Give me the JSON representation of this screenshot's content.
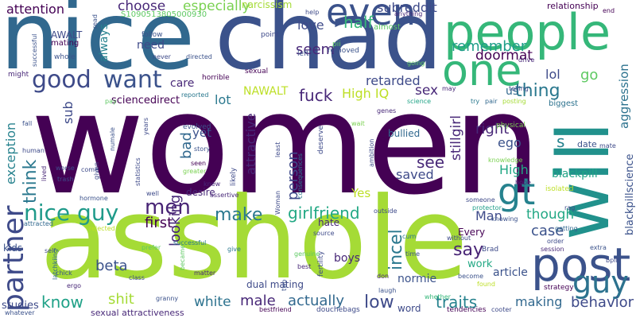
{
  "word_cloud": {
    "background": "#ffffff",
    "words": [
      {
        "text": "women",
        "color": "#440154"
      },
      {
        "text": "asshole",
        "color": "#a5db36"
      },
      {
        "text": "nice",
        "color": "#31688e"
      },
      {
        "text": "chad",
        "color": "#3b528b"
      },
      {
        "text": "will",
        "color": "#21918c"
      },
      {
        "text": "people",
        "color": "#35b779"
      },
      {
        "text": "one",
        "color": "#35b779"
      },
      {
        "text": "post",
        "color": "#3b528b"
      },
      {
        "text": "guy",
        "color": "#2c728e"
      },
      {
        "text": "gt",
        "color": "#26828e"
      },
      {
        "text": "even",
        "color": "#3b528b"
      },
      {
        "text": "good",
        "color": "#3e4a89"
      },
      {
        "text": "want",
        "color": "#3b528b"
      },
      {
        "text": "partner",
        "color": "#3e4a89"
      },
      {
        "text": "nice guy",
        "color": "#1f9a8a"
      },
      {
        "text": "men",
        "color": "#482475"
      },
      {
        "text": "make",
        "color": "#2a788e"
      },
      {
        "text": "girlfriend",
        "color": "#22a884"
      },
      {
        "text": "think",
        "color": "#2a788e"
      },
      {
        "text": "know",
        "color": "#1fa187"
      },
      {
        "text": "shit",
        "color": "#a5db36"
      },
      {
        "text": "white",
        "color": "#2c728e"
      },
      {
        "text": "male",
        "color": "#482878"
      },
      {
        "text": "actually",
        "color": "#31688e"
      },
      {
        "text": "low",
        "color": "#3e4a89"
      },
      {
        "text": "traits",
        "color": "#26828e"
      },
      {
        "text": "making",
        "color": "#31688e"
      },
      {
        "text": "behavior",
        "color": "#3e4a89"
      },
      {
        "text": "say",
        "color": "#482475"
      },
      {
        "text": "case",
        "color": "#3b528b"
      },
      {
        "text": "though",
        "color": "#22a884"
      },
      {
        "text": "incel",
        "color": "#2a788e"
      },
      {
        "text": "see",
        "color": "#482878"
      },
      {
        "text": "saved",
        "color": "#3e4a89"
      },
      {
        "text": "person",
        "color": "#3e4a89"
      },
      {
        "text": "looking",
        "color": "#482878"
      },
      {
        "text": "beta",
        "color": "#3b528b"
      },
      {
        "text": "first",
        "color": "#440154"
      },
      {
        "text": "fuck",
        "color": "#482878"
      },
      {
        "text": "seem",
        "color": "#482878"
      },
      {
        "text": "love",
        "color": "#3e4a89"
      },
      {
        "text": "half",
        "color": "#35b779"
      },
      {
        "text": "especially",
        "color": "#7ad151"
      },
      {
        "text": "choose",
        "color": "#482878"
      },
      {
        "text": "attention",
        "color": "#440154"
      },
      {
        "text": "retarded",
        "color": "#3e4a89"
      },
      {
        "text": "subreddit",
        "color": "#3e4a89"
      },
      {
        "text": "remember",
        "color": "#1f9e89"
      },
      {
        "text": "doormat",
        "color": "#440154"
      },
      {
        "text": "lol",
        "color": "#3e4a89"
      },
      {
        "text": "go",
        "color": "#5ec962"
      },
      {
        "text": "thing",
        "color": "#2a788e"
      },
      {
        "text": "us",
        "color": "#31688e"
      },
      {
        "text": "sex",
        "color": "#482878"
      },
      {
        "text": "High IQ",
        "color": "#bddf26"
      },
      {
        "text": "NAWALT",
        "color": "#bddf26"
      },
      {
        "text": "lot",
        "color": "#2a788e"
      },
      {
        "text": "care",
        "color": "#482878"
      },
      {
        "text": "need",
        "color": "#3e4a89"
      },
      {
        "text": "always",
        "color": "#26828e"
      },
      {
        "text": "stillgirl",
        "color": "#482878"
      },
      {
        "text": "right",
        "color": "#482878"
      },
      {
        "text": "ego",
        "color": "#3b528b"
      },
      {
        "text": "High",
        "color": "#22a884"
      },
      {
        "text": "Man",
        "color": "#3e4a89"
      },
      {
        "text": "Yes",
        "color": "#bddf26"
      },
      {
        "text": "bullied",
        "color": "#31688e"
      },
      {
        "text": "yet",
        "color": "#3b528b"
      },
      {
        "text": "bad",
        "color": "#31688e"
      },
      {
        "text": "exception",
        "color": "#26828e"
      },
      {
        "text": "sub",
        "color": "#3e4a89"
      },
      {
        "text": "attractive",
        "color": "#482878"
      },
      {
        "text": "aggression",
        "color": "#2c728e"
      },
      {
        "text": "blackpillscience",
        "color": "#3b528b"
      },
      {
        "text": "s",
        "color": "#26828e"
      },
      {
        "text": "date",
        "color": "#3b528b"
      },
      {
        "text": "blackpill",
        "color": "#20a386"
      },
      {
        "text": "relationship",
        "color": "#440154"
      },
      {
        "text": "desire",
        "color": "#482878"
      },
      {
        "text": "hate",
        "color": "#482878"
      },
      {
        "text": "Every",
        "color": "#440154"
      },
      {
        "text": "boys",
        "color": "#482878"
      },
      {
        "text": "normie",
        "color": "#3b528b"
      },
      {
        "text": "article",
        "color": "#3b528b"
      },
      {
        "text": "work",
        "color": "#22a884"
      },
      {
        "text": "word",
        "color": "#3e4a89"
      },
      {
        "text": "dual mating",
        "color": "#3e4a89"
      },
      {
        "text": "sexual attractiveness",
        "color": "#482878"
      },
      {
        "text": "studies",
        "color": "#3e4a89"
      },
      {
        "text": "kids",
        "color": "#3b528b"
      },
      {
        "text": "sciencedirect",
        "color": "#440154"
      },
      {
        "text": "AWALT",
        "color": "#3e4a89"
      },
      {
        "text": "S1090513805000930",
        "color": "#5ec962"
      },
      {
        "text": "narcissism",
        "color": "#a5db36"
      },
      {
        "text": "mating",
        "color": "#440154"
      },
      {
        "text": "follow",
        "color": "#3b528b"
      },
      {
        "text": "whole",
        "color": "#3b528b"
      },
      {
        "text": "successful",
        "color": "#3b528b"
      },
      {
        "text": "might",
        "color": "#482878"
      },
      {
        "text": "reported",
        "color": "#2a788e"
      },
      {
        "text": "horrible",
        "color": "#440154"
      },
      {
        "text": "directed",
        "color": "#3b528b"
      },
      {
        "text": "sexual",
        "color": "#440154"
      },
      {
        "text": "removed",
        "color": "#3b528b"
      },
      {
        "text": "pii",
        "color": "#5ec962"
      },
      {
        "text": "almost",
        "color": "#5ec962"
      },
      {
        "text": "help",
        "color": "#3e4a89"
      },
      {
        "text": "point",
        "color": "#3e4a89"
      },
      {
        "text": "left",
        "color": "#3b528b"
      },
      {
        "text": "anything",
        "color": "#482878"
      },
      {
        "text": "end",
        "color": "#440154"
      },
      {
        "text": "drive",
        "color": "#482878"
      },
      {
        "text": "going",
        "color": "#5ec962"
      },
      {
        "text": "telling",
        "color": "#3e4a89"
      },
      {
        "text": "pair",
        "color": "#31688e"
      },
      {
        "text": "posting",
        "color": "#a5db36"
      },
      {
        "text": "try",
        "color": "#2a788e"
      },
      {
        "text": "science",
        "color": "#20a386"
      },
      {
        "text": "biggest",
        "color": "#2c728e"
      },
      {
        "text": "genes",
        "color": "#482878"
      },
      {
        "text": "may",
        "color": "#482878"
      },
      {
        "text": "physical",
        "color": "#7ad151"
      },
      {
        "text": "IQ",
        "color": "#440154"
      },
      {
        "text": "wait",
        "color": "#7ad151"
      },
      {
        "text": "ambition",
        "color": "#3e4a89"
      },
      {
        "text": "knowledge",
        "color": "#7ad151"
      },
      {
        "text": "protector",
        "color": "#1f9e89"
      },
      {
        "text": "someone",
        "color": "#3e4a89"
      },
      {
        "text": "hope",
        "color": "#482878"
      },
      {
        "text": "isolated",
        "color": "#bddf26"
      },
      {
        "text": "rag",
        "color": "#3e4a89"
      },
      {
        "text": "knowing",
        "color": "#3b528b"
      },
      {
        "text": "getting",
        "color": "#31688e"
      },
      {
        "text": "order",
        "color": "#3e4a89"
      },
      {
        "text": "session",
        "color": "#482878"
      },
      {
        "text": "extra",
        "color": "#3b528b"
      },
      {
        "text": "strategy",
        "color": "#440154"
      },
      {
        "text": "found",
        "color": "#bddf26"
      },
      {
        "text": "become",
        "color": "#3b528b"
      },
      {
        "text": "whether",
        "color": "#35b779"
      },
      {
        "text": "tendencies",
        "color": "#440154"
      },
      {
        "text": "cooter",
        "color": "#3e4a89"
      },
      {
        "text": "Brad",
        "color": "#3e4a89"
      },
      {
        "text": "without",
        "color": "#3e4a89"
      },
      {
        "text": "cum",
        "color": "#2a788e"
      },
      {
        "text": "time",
        "color": "#3b528b"
      },
      {
        "text": "laugh",
        "color": "#3b528b"
      },
      {
        "text": "don",
        "color": "#482878"
      },
      {
        "text": "fertility",
        "color": "#3e4a89"
      },
      {
        "text": "best",
        "color": "#482878"
      },
      {
        "text": "genuine",
        "color": "#5ec962"
      },
      {
        "text": "two",
        "color": "#3b528b"
      },
      {
        "text": "source",
        "color": "#3e4a89"
      },
      {
        "text": "outside",
        "color": "#3e4a89"
      },
      {
        "text": "consequences",
        "color": "#2a788e"
      },
      {
        "text": "Woman",
        "color": "#3e4a89"
      },
      {
        "text": "least",
        "color": "#3e4a89"
      },
      {
        "text": "deserve",
        "color": "#3e4a89"
      },
      {
        "text": "likely",
        "color": "#3e4a89"
      },
      {
        "text": "assertive",
        "color": "#482878"
      },
      {
        "text": "knew",
        "color": "#482878"
      },
      {
        "text": "seen",
        "color": "#440154"
      },
      {
        "text": "story",
        "color": "#3b528b"
      },
      {
        "text": "greater",
        "color": "#7ad151"
      },
      {
        "text": "evolved",
        "color": "#3b528b"
      },
      {
        "text": "prefer",
        "color": "#5ec962"
      },
      {
        "text": "give",
        "color": "#2a788e"
      },
      {
        "text": "successful_b",
        "color": "#2a788e"
      },
      {
        "text": "matter",
        "color": "#482878"
      },
      {
        "text": "became",
        "color": "#5ec962"
      },
      {
        "text": "bestfriend",
        "color": "#440154"
      },
      {
        "text": "douchebags",
        "color": "#3e4a89"
      },
      {
        "text": "granny",
        "color": "#3b528b"
      },
      {
        "text": "class",
        "color": "#3e4a89"
      },
      {
        "text": "chick",
        "color": "#3b528b"
      },
      {
        "text": "self",
        "color": "#3e4a89"
      },
      {
        "text": "attracted",
        "color": "#31688e"
      },
      {
        "text": "rejected",
        "color": "#bddf26"
      },
      {
        "text": "whatever",
        "color": "#3b528b"
      },
      {
        "text": "ergo",
        "color": "#482878"
      },
      {
        "text": "latchkiing",
        "color": "#31688e"
      },
      {
        "text": "hormone",
        "color": "#3b528b"
      },
      {
        "text": "lived",
        "color": "#482878"
      },
      {
        "text": "trash",
        "color": "#3e4a89"
      },
      {
        "text": "worse",
        "color": "#3e4a89"
      },
      {
        "text": "come",
        "color": "#3e4a89"
      },
      {
        "text": "statistics",
        "color": "#3e4a89"
      },
      {
        "text": "given",
        "color": "#3e4a89"
      },
      {
        "text": "well",
        "color": "#3e4a89"
      },
      {
        "text": "numale",
        "color": "#3b528b"
      },
      {
        "text": "years",
        "color": "#3e4a89"
      },
      {
        "text": "human",
        "color": "#3e4a89"
      },
      {
        "text": "fall",
        "color": "#3b528b"
      },
      {
        "text": "pay",
        "color": "#5ec962"
      },
      {
        "text": "never",
        "color": "#3e4a89"
      },
      {
        "text": "read",
        "color": "#3b528b"
      },
      {
        "text": "mate",
        "color": "#3e4a89"
      },
      {
        "text": "bpill",
        "color": "#3e4a89"
      }
    ]
  }
}
